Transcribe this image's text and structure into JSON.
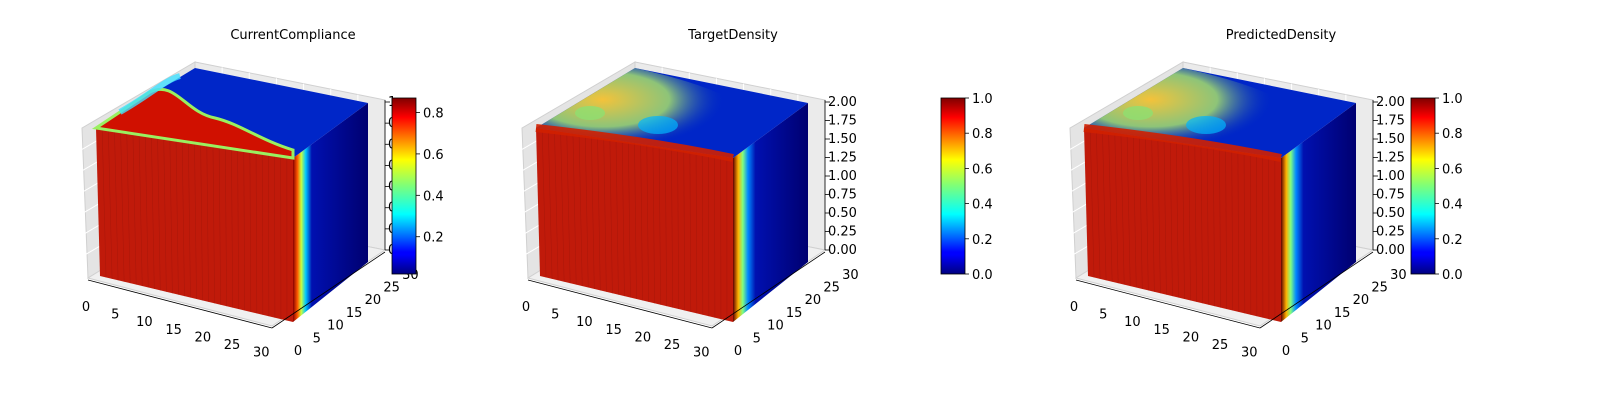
{
  "chart_data": [
    {
      "type": "voxel-3d",
      "title": "CurrentCompliance",
      "x_ticks": [
        "0",
        "5",
        "10",
        "15",
        "20",
        "25",
        "30"
      ],
      "y_ticks": [
        "0",
        "5",
        "10",
        "15",
        "20",
        "25",
        "30"
      ],
      "z_ticks": [
        "0",
        "0",
        "0",
        "0",
        "0",
        "0",
        "0",
        "1"
      ],
      "colorbar": {
        "colormap": "jet",
        "range": [
          0.02,
          0.87
        ],
        "ticks": [
          "0.2",
          "0.4",
          "0.6",
          "0.8"
        ],
        "tick_values": [
          0.2,
          0.4,
          0.6,
          0.8
        ]
      }
    },
    {
      "type": "voxel-3d",
      "title": "TargetDensity",
      "x_ticks": [
        "0",
        "5",
        "10",
        "15",
        "20",
        "25",
        "30"
      ],
      "y_ticks": [
        "0",
        "5",
        "10",
        "15",
        "20",
        "25",
        "30"
      ],
      "z_ticks": [
        "0.00",
        "0.25",
        "0.50",
        "0.75",
        "1.00",
        "1.25",
        "1.50",
        "1.75",
        "2.00"
      ],
      "colorbar": {
        "colormap": "jet",
        "range": [
          0,
          1
        ],
        "ticks": [
          "0.0",
          "0.2",
          "0.4",
          "0.6",
          "0.8",
          "1.0"
        ],
        "tick_values": [
          0,
          0.2,
          0.4,
          0.6,
          0.8,
          1.0
        ]
      }
    },
    {
      "type": "voxel-3d",
      "title": "PredictedDensity",
      "x_ticks": [
        "0",
        "5",
        "10",
        "15",
        "20",
        "25",
        "30"
      ],
      "y_ticks": [
        "0",
        "5",
        "10",
        "15",
        "20",
        "25",
        "30"
      ],
      "z_ticks": [
        "0.00",
        "0.25",
        "0.50",
        "0.75",
        "1.00",
        "1.25",
        "1.50",
        "1.75",
        "2.00"
      ],
      "colorbar": {
        "colormap": "jet",
        "range": [
          0,
          1
        ],
        "ticks": [
          "0.0",
          "0.2",
          "0.4",
          "0.6",
          "0.8",
          "1.0"
        ],
        "tick_values": [
          0,
          0.2,
          0.4,
          0.6,
          0.8,
          1.0
        ]
      }
    }
  ]
}
